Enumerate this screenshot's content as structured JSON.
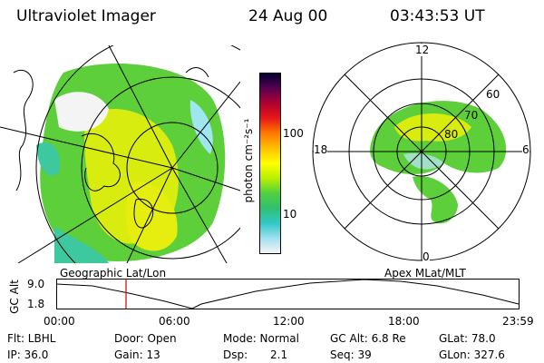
{
  "header": {
    "instrument": "Ultraviolet Imager",
    "date": "24 Aug 00",
    "time": "03:43:53 UT"
  },
  "colorbar": {
    "unit_label": "photon cm⁻²s⁻¹",
    "ticks": [
      "100",
      "10"
    ],
    "colors": [
      "#000033",
      "#5a0050",
      "#b00030",
      "#e81818",
      "#ff7a00",
      "#ffc000",
      "#ffff00",
      "#b8f000",
      "#50d040",
      "#30c070",
      "#30c8c8",
      "#a0e0f0",
      "#f4f4f4"
    ]
  },
  "polar_plot": {
    "labels": [
      "12",
      "18",
      "6",
      "0",
      "60",
      "70",
      "80"
    ]
  },
  "panels": {
    "left_caption": "Geographic Lat/Lon",
    "right_caption": "Apex MLat/MLT"
  },
  "timeline": {
    "axis_label": "GC Alt",
    "y_ticks": [
      "9.0",
      "1.8"
    ],
    "x_ticks": [
      "00:00",
      "06:00",
      "12:00",
      "18:00",
      "23:59"
    ]
  },
  "info": {
    "flt": "Flt: LBHL",
    "ip": "IP: 36.0",
    "door": "Door: Open",
    "gain": "Gain: 13",
    "mode": "Mode: Normal",
    "dsp_label": "Dsp:",
    "dsp_value": "2.1",
    "gcalt": "GC Alt: 6.8 Re",
    "seq": "Seq: 39",
    "glat": "GLat: 78.0",
    "glon": "GLon: 327.6"
  },
  "colors": {
    "aurora_green": "#5ccf3a",
    "aurora_light": "#3ec8a0",
    "aurora_yellow": "#d8ec10",
    "time_marker": "#cc0000"
  }
}
